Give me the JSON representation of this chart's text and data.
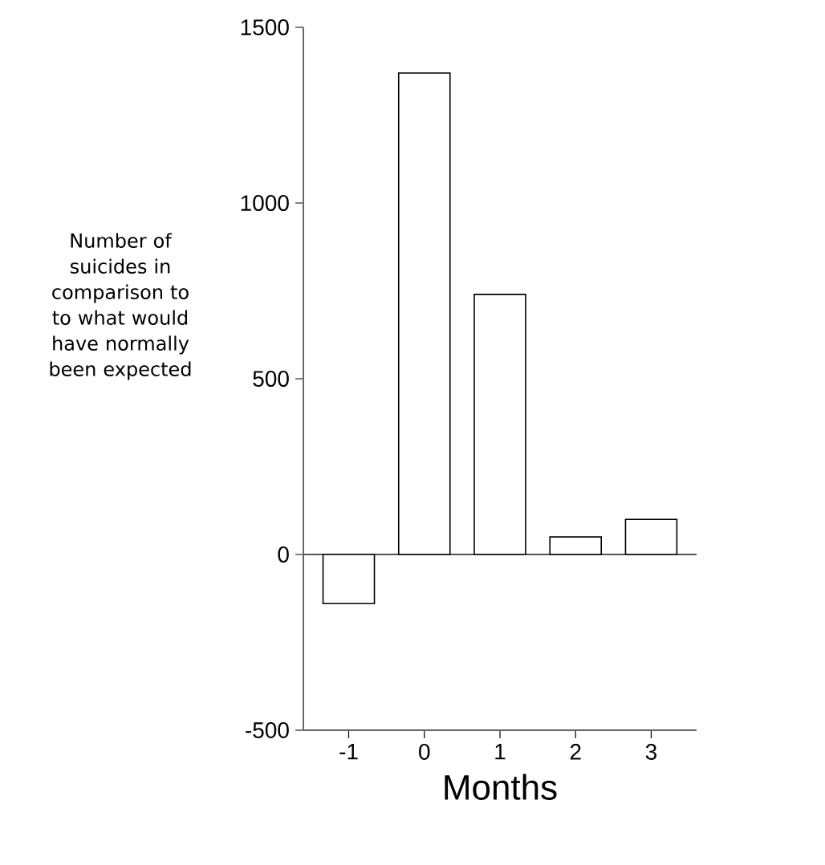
{
  "chart_data": {
    "type": "bar",
    "categories": [
      "-1",
      "0",
      "1",
      "2",
      "3"
    ],
    "values": [
      -140,
      1370,
      740,
      50,
      100
    ],
    "color": "#ffffff",
    "xlabel": "Months",
    "ylabel": "Number of suicides in comparison to to what would have normally been expected",
    "ylim": [
      -500,
      1500
    ],
    "yticks": [
      -500,
      0,
      500,
      1000,
      1500
    ],
    "ref_lines": [
      {
        "axis": "y",
        "value": 0,
        "color": "#555555"
      }
    ],
    "grid": false
  }
}
